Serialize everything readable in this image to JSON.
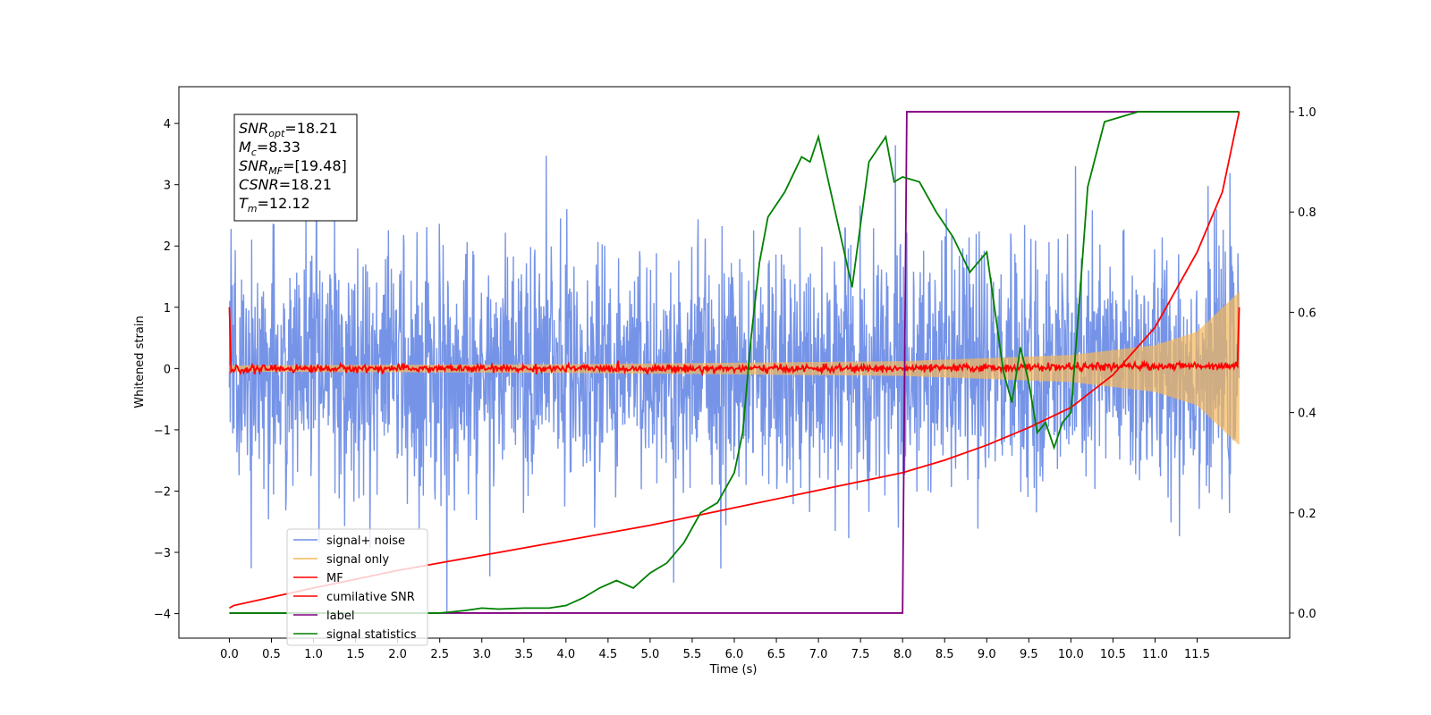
{
  "chart_data": {
    "type": "line",
    "xlabel": "Time (s)",
    "ylabel": "Whitened strain",
    "xlim": [
      -0.6,
      12.6
    ],
    "ylim_left": [
      -4.4,
      4.6
    ],
    "ylim_right": [
      -0.05,
      1.05
    ],
    "x_ticks": [
      "0.0",
      "0.5",
      "1.0",
      "1.5",
      "2.0",
      "2.5",
      "3.0",
      "3.5",
      "4.0",
      "4.5",
      "5.0",
      "5.5",
      "6.0",
      "6.5",
      "7.0",
      "7.5",
      "8.0",
      "8.5",
      "9.0",
      "9.5",
      "10.0",
      "10.5",
      "11.0",
      "11.5"
    ],
    "y_ticks_left": [
      "−4",
      "−3",
      "−2",
      "−1",
      "0",
      "1",
      "2",
      "3",
      "4"
    ],
    "y_ticks_right": [
      "0.0",
      "0.2",
      "0.4",
      "0.6",
      "0.8",
      "1.0"
    ],
    "annotation": [
      {
        "var": "SNR",
        "sub": "opt",
        "value": "=18.21"
      },
      {
        "var": "M",
        "sub": "c",
        "value": "=8.33"
      },
      {
        "var": "SNR",
        "sub": "MF",
        "value": "=[19.48]"
      },
      {
        "var": "CSNR",
        "sub": "",
        "value": "=18.21"
      },
      {
        "var": "T",
        "sub": "m",
        "value": "=12.12"
      }
    ],
    "legend_position": "lower-left",
    "series": [
      {
        "name": "signal+ noise",
        "color": "#6f8ee6",
        "axis": "left",
        "description_stats": {
          "x_range": [
            0,
            12.0
          ],
          "approx_std": 1.0,
          "approx_min": -4.0,
          "approx_max": 4.1
        }
      },
      {
        "name": "signal only",
        "color": "#f5b85a",
        "axis": "left",
        "envelope": {
          "x": [
            0,
            4,
            8,
            10,
            11,
            11.5,
            12.0
          ],
          "amplitude": [
            0.05,
            0.07,
            0.12,
            0.22,
            0.38,
            0.6,
            1.25
          ]
        }
      },
      {
        "name": "MF",
        "color": "#ff0000",
        "axis": "left",
        "x": [
          0.0,
          0.02,
          0.5,
          4.0,
          8.0,
          11.98,
          12.0
        ],
        "y": [
          1.0,
          -0.02,
          0.0,
          0.0,
          0.0,
          0.05,
          1.0
        ]
      },
      {
        "name": "cumilative SNR",
        "color": "#ff0000",
        "axis": "right",
        "x": [
          0.0,
          0.05,
          1.0,
          2.0,
          3.0,
          4.0,
          5.0,
          6.0,
          7.0,
          8.0,
          8.5,
          9.0,
          9.5,
          10.0,
          10.5,
          11.0,
          11.5,
          11.8,
          12.0
        ],
        "y": [
          0.01,
          0.015,
          0.05,
          0.085,
          0.115,
          0.145,
          0.175,
          0.21,
          0.245,
          0.28,
          0.305,
          0.335,
          0.37,
          0.41,
          0.475,
          0.57,
          0.72,
          0.84,
          1.0
        ]
      },
      {
        "name": "label",
        "color": "#800080",
        "axis": "right",
        "x": [
          0.0,
          8.0,
          8.05,
          12.0
        ],
        "y": [
          0.0,
          0.0,
          1.0,
          1.0
        ]
      },
      {
        "name": "signal statistics",
        "color": "#008000",
        "axis": "right",
        "x": [
          0.0,
          0.5,
          1.0,
          1.5,
          2.0,
          2.5,
          2.8,
          3.0,
          3.2,
          3.5,
          3.8,
          4.0,
          4.2,
          4.4,
          4.6,
          4.8,
          5.0,
          5.2,
          5.4,
          5.6,
          5.8,
          6.0,
          6.1,
          6.2,
          6.3,
          6.4,
          6.6,
          6.8,
          6.9,
          7.0,
          7.2,
          7.4,
          7.6,
          7.8,
          7.9,
          8.0,
          8.2,
          8.4,
          8.6,
          8.8,
          9.0,
          9.2,
          9.3,
          9.4,
          9.5,
          9.6,
          9.7,
          9.8,
          9.9,
          10.0,
          10.1,
          10.2,
          10.4,
          10.6,
          10.8,
          11.0,
          11.5,
          12.0
        ],
        "y": [
          0.0,
          0.0,
          0.0,
          0.0,
          0.0,
          0.0,
          0.005,
          0.01,
          0.008,
          0.01,
          0.01,
          0.015,
          0.03,
          0.05,
          0.065,
          0.05,
          0.08,
          0.1,
          0.14,
          0.2,
          0.22,
          0.28,
          0.36,
          0.55,
          0.7,
          0.79,
          0.84,
          0.91,
          0.9,
          0.95,
          0.8,
          0.65,
          0.9,
          0.95,
          0.86,
          0.87,
          0.86,
          0.8,
          0.75,
          0.68,
          0.72,
          0.48,
          0.42,
          0.53,
          0.46,
          0.36,
          0.38,
          0.33,
          0.38,
          0.4,
          0.62,
          0.85,
          0.98,
          0.99,
          1.0,
          1.0,
          1.0,
          1.0
        ]
      }
    ]
  }
}
